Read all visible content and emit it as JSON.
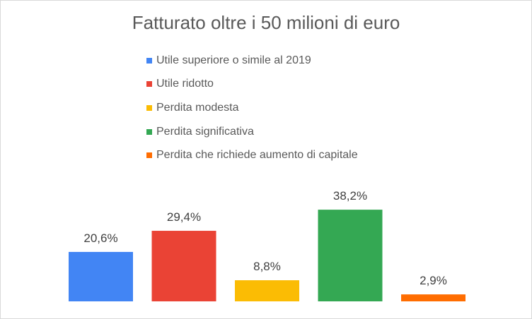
{
  "chart_data": {
    "type": "bar",
    "title": "Fatturato oltre i 50 milioni di euro",
    "xlabel": "",
    "ylabel": "",
    "ylim": [
      0,
      45
    ],
    "grid": false,
    "legend_position": "top",
    "categories": [
      "Utile superiore o simile al 2019",
      "Utile ridotto",
      "Perdita modesta",
      "Perdita significativa",
      "Perdita che richiede aumento di capitale"
    ],
    "values": [
      20.6,
      29.4,
      8.8,
      38.2,
      2.9
    ],
    "value_labels": [
      "20,6%",
      "29,4%",
      "8,8%",
      "38,2%",
      "2,9%"
    ],
    "colors": [
      "#4285f4",
      "#ea4335",
      "#fbbc04",
      "#34a853",
      "#ff6d01"
    ]
  }
}
